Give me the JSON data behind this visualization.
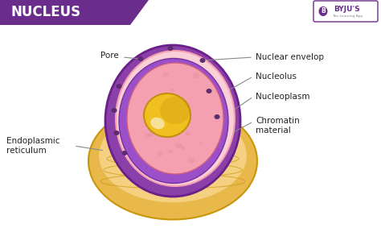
{
  "title": "NUCLEUS",
  "title_bg": "#6B2D8B",
  "title_color": "#FFFFFF",
  "bg_color": "#FFFFFF",
  "labels": {
    "pore": "Pore",
    "nuclear_envelop": "Nuclear envelop",
    "nucleolus": "Nucleolus",
    "nucleoplasm": "Nucleoplasm",
    "chromatin": "Chromatin\nmaterial",
    "endoplasmic": "Endoplasmic\nreticulum"
  },
  "colors": {
    "outer_shell": "#E8B84B",
    "outer_shell_dark": "#C8960A",
    "outer_shell_light": "#F5D080",
    "nuclear_envelope_outer": "#8B3FA8",
    "nuclear_envelope_mid": "#A855C8",
    "nucleoplasm_pink": "#F4A0B0",
    "nucleoplasm_light": "#FAD0D8",
    "chromatin_purple": "#9B4FC8",
    "nucleolus_yellow": "#F0C020",
    "nucleolus_light": "#F8E060",
    "pore_dots": "#5B2C6F",
    "line_color": "#888888"
  },
  "byju_color": "#6B2D8B"
}
